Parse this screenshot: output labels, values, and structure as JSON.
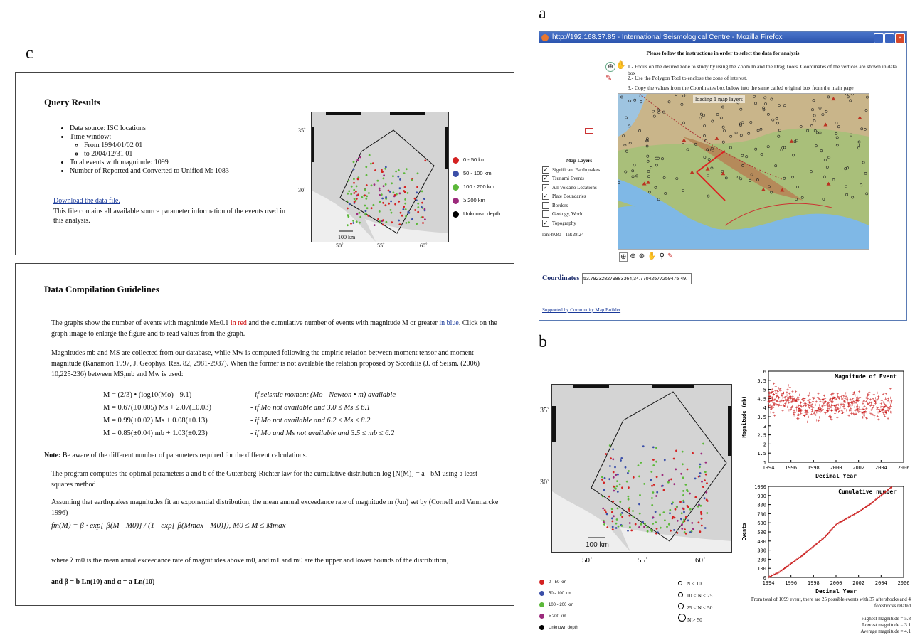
{
  "figure_labels": {
    "a": "a",
    "b": "b",
    "c": "c"
  },
  "query": {
    "title": "Query Results",
    "source": "Data source: ISC locations",
    "time_window": "Time window:",
    "from": "From 1994/01/02 01",
    "to": "to     2004/12/31 01",
    "total": "Total events with magnitude: 1099",
    "reported": "Number of Reported and Converted to Unified M: 1083",
    "download": "Download the data file.",
    "download_desc": "This file contains all available source parameter information of the events used in this analysis.",
    "map_lat_top": "35˚",
    "map_lat_mid": "30˚",
    "map_scale": "100 km",
    "map_lon": [
      "50˚",
      "55˚",
      "60˚"
    ],
    "legend": [
      {
        "label": "0 - 50 km",
        "color": "#d42222"
      },
      {
        "label": "50 - 100 km",
        "color": "#3b4fa8"
      },
      {
        "label": "100 - 200 km",
        "color": "#5cb83a"
      },
      {
        "label": "≥ 200 km",
        "color": "#9c2a7c"
      },
      {
        "label": "Unknown depth",
        "color": "#000000"
      }
    ]
  },
  "guide": {
    "title": "Data Compilation Guidelines",
    "p1a": "The graphs show the number of events with magnitude M±0.1 ",
    "p1red": "in red",
    "p1b": " and the cumulative number of events with magnitude M or greater ",
    "p1blue": "in blue",
    "p1c": ". Click on the graph image to enlarge the figure and to read values from the graph.",
    "p2": "Magnitudes mb and MS are collected from our database, while Mw is computed following the empiric relation between moment tensor and moment magnitude (Kanamori 1997, J. Geophys. Res. 82, 2981-2987). When the former is not available the relation proposed by Scordilis (J. of Seism. (2006) 10,225-236) between MS,mb and Mw is used:",
    "eq1": "M = (2/3) • (log10(Mo) - 9.1)",
    "eq1c": "- if seismic moment (Mo - Newton • m) available",
    "eq2": "M = 0.67(±0.005) Ms + 2.07(±0.03)",
    "eq2c": "- if Mo not available and 3.0 ≤ Ms ≤ 6.1",
    "eq3": "M = 0.99(±0.02) Ms + 0.08(±0.13)",
    "eq3c": "- if Mo not available and 6.2 ≤ Ms ≤ 8.2",
    "eq4": "M = 0.85(±0.04) mb + 1.03(±0.23)",
    "eq4c": "- if Mo and Ms not available and 3.5 ≤ mb ≤ 6.2",
    "note_b": "Note:",
    "note": " Be aware of the different number of parameters required for the different calculations.",
    "p3": "The program computes the optimal parameters a and b of the Gutenberg-Richter law for the cumulative distribution log [N(M)] = a - bM using a least squares method",
    "p4": "Assuming that earthquakes magnitudes fit an exponential distribution, the mean annual exceedance rate of magnitude m (λm) set by (Cornell and Vanmarcke 1996)",
    "formula": "fm(M) = β · exp[-β(M - M0)] / (1 - exp[-β(Mmax - M0)]),    M0 ≤ M ≤ Mmax",
    "p5": "where λ m0 is the mean anual exceedance rate of magnitudes above m0, and m1 and m0 are the upper and lower bounds of the distribution,",
    "p6": "and β = b Ln(10) and α = a Ln(10)"
  },
  "browser": {
    "title": "http://192.168.37.85 - International Seismological Centre - Mozilla Firefox",
    "heading": "Please follow the instructions in order to select the data for analysis",
    "step1": "1.- Focus on the desired zone to study by using the Zoom In and the Drag Tools. Coordinates of the vertices are shown in data box",
    "step2": "2.- Use the Polygon Tool to enclose the zone of interest.",
    "step3": "3.- Copy the values from the Coordinates box below into the same called original box from the main page",
    "loading": "loading 1 map layers",
    "layers_title": "Map Layers",
    "layers": [
      {
        "label": "Significant Earthquakes",
        "checked": true
      },
      {
        "label": "Tsunami Events",
        "checked": true
      },
      {
        "label": "All Volcano Locations",
        "checked": true
      },
      {
        "label": "Plate Boundaries",
        "checked": true
      },
      {
        "label": "Borders",
        "checked": false
      },
      {
        "label": "Geology, World",
        "checked": false
      },
      {
        "label": "Topography",
        "checked": true
      }
    ],
    "lon": "lon:49.80",
    "lat": "lat:28.24",
    "coords_label": "Coordinates",
    "coords_value": "53.792328279883364,34.77042577259475 49.",
    "footer": "Supported by Community Map Builder"
  },
  "plots": {
    "mag_title": "Magnitude of Event",
    "mag_ylabel": "Magnitude (mb)",
    "mag_yticks": [
      "6",
      "5.5",
      "5",
      "4.5",
      "4",
      "3.5",
      "3",
      "2.5",
      "2",
      "1.5",
      "1"
    ],
    "cum_title": "Cumulative number",
    "cum_ylabel": "Events",
    "cum_yticks": [
      "1000",
      "900",
      "800",
      "700",
      "600",
      "500",
      "400",
      "300",
      "200",
      "100",
      "0"
    ],
    "xticks": [
      "1994",
      "1996",
      "1998",
      "2000",
      "2002",
      "2004",
      "2006"
    ],
    "xlabel": "Decimal Year",
    "summary": "From total of 1099 event, there are 25 possible events with 37 aftershocks and 4 foreshocks related",
    "highest": "Highest magnitude = 5.8",
    "lowest": "Lowest magnitude = 3.1",
    "average": "Average magnitude = 4.1"
  },
  "bmap": {
    "lat_top": "35˚",
    "lat_mid": "30˚",
    "scale": "100 km",
    "lon": [
      "50˚",
      "55˚",
      "60˚"
    ],
    "legend": [
      {
        "label": "0 - 50 km",
        "color": "#d42222"
      },
      {
        "label": "50 - 100 km",
        "color": "#3b4fa8"
      },
      {
        "label": "100 - 200 km",
        "color": "#5cb83a"
      },
      {
        "label": "≥ 200 km",
        "color": "#9c2a7c"
      },
      {
        "label": "Unknown depth",
        "color": "#000000"
      }
    ],
    "size_legend": [
      "N < 10",
      "10 < N < 25",
      "25 < N < 50",
      "N > 50"
    ]
  },
  "chart_data": [
    {
      "type": "scatter",
      "title": "Magnitude of Event",
      "xlabel": "Decimal Year",
      "ylabel": "Magnitude (mb)",
      "xlim": [
        1994,
        2006
      ],
      "ylim": [
        1,
        6
      ]
    },
    {
      "type": "line",
      "title": "Cumulative number",
      "xlabel": "Decimal Year",
      "ylabel": "Events",
      "xlim": [
        1994,
        2006
      ],
      "ylim": [
        0,
        1000
      ],
      "x": [
        1994,
        1995,
        1996,
        1997,
        1998,
        1999,
        2000,
        2001,
        2002,
        2003,
        2004,
        2005
      ],
      "y": [
        0,
        60,
        150,
        240,
        340,
        440,
        580,
        650,
        720,
        800,
        900,
        1000
      ]
    }
  ]
}
